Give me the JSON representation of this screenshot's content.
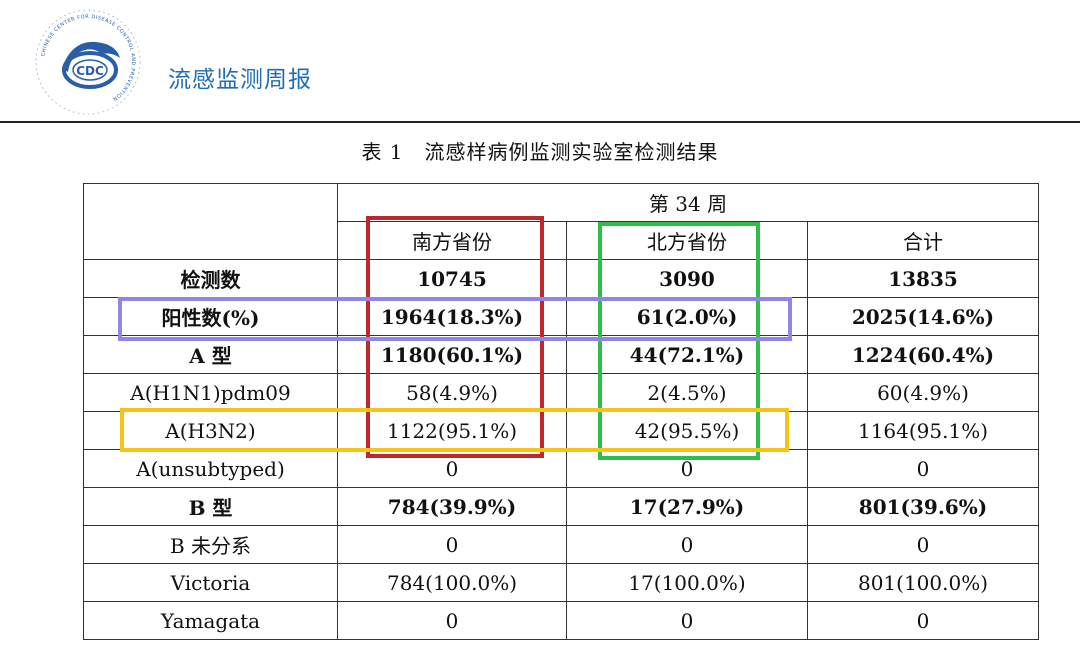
{
  "header": {
    "report_title": "流感监测周报",
    "logo_text": "CDC",
    "logo_ring_text": "CHINESE CENTER FOR DISEASE CONTROL AND PREVENTION"
  },
  "table": {
    "caption": "表 1　流感样病例监测实验室检测结果",
    "week_label": "第 34 周",
    "columns": [
      "南方省份",
      "北方省份",
      "合计"
    ],
    "rows": [
      {
        "label": "检测数",
        "values": [
          "10745",
          "3090",
          "13835"
        ],
        "bold": true
      },
      {
        "label": "阳性数(%)",
        "values": [
          "1964(18.3%)",
          "61(2.0%)",
          "2025(14.6%)"
        ],
        "bold": true
      },
      {
        "label": "A 型",
        "values": [
          "1180(60.1%)",
          "44(72.1%)",
          "1224(60.4%)"
        ],
        "bold": true
      },
      {
        "label": "A(H1N1)pdm09",
        "values": [
          "58(4.9%)",
          "2(4.5%)",
          "60(4.9%)"
        ],
        "bold": false
      },
      {
        "label": "A(H3N2)",
        "values": [
          "1122(95.1%)",
          "42(95.5%)",
          "1164(95.1%)"
        ],
        "bold": false
      },
      {
        "label": "A(unsubtyped)",
        "values": [
          "0",
          "0",
          "0"
        ],
        "bold": false
      },
      {
        "label": "B 型",
        "values": [
          "784(39.9%)",
          "17(27.9%)",
          "801(39.6%)"
        ],
        "bold": true
      },
      {
        "label": "B 未分系",
        "values": [
          "0",
          "0",
          "0"
        ],
        "bold": false
      },
      {
        "label": "Victoria",
        "values": [
          "784(100.0%)",
          "17(100.0%)",
          "801(100.0%)"
        ],
        "bold": false
      },
      {
        "label": "Yamagata",
        "values": [
          "0",
          "0",
          "0"
        ],
        "bold": false
      }
    ]
  },
  "highlights": {
    "red": "#c0272d",
    "green": "#2fbe4a",
    "purple": "#8f86e8",
    "yellow": "#f6c416"
  },
  "colors": {
    "title_blue": "#1f6db7",
    "logo_blue": "#2a5da8"
  }
}
